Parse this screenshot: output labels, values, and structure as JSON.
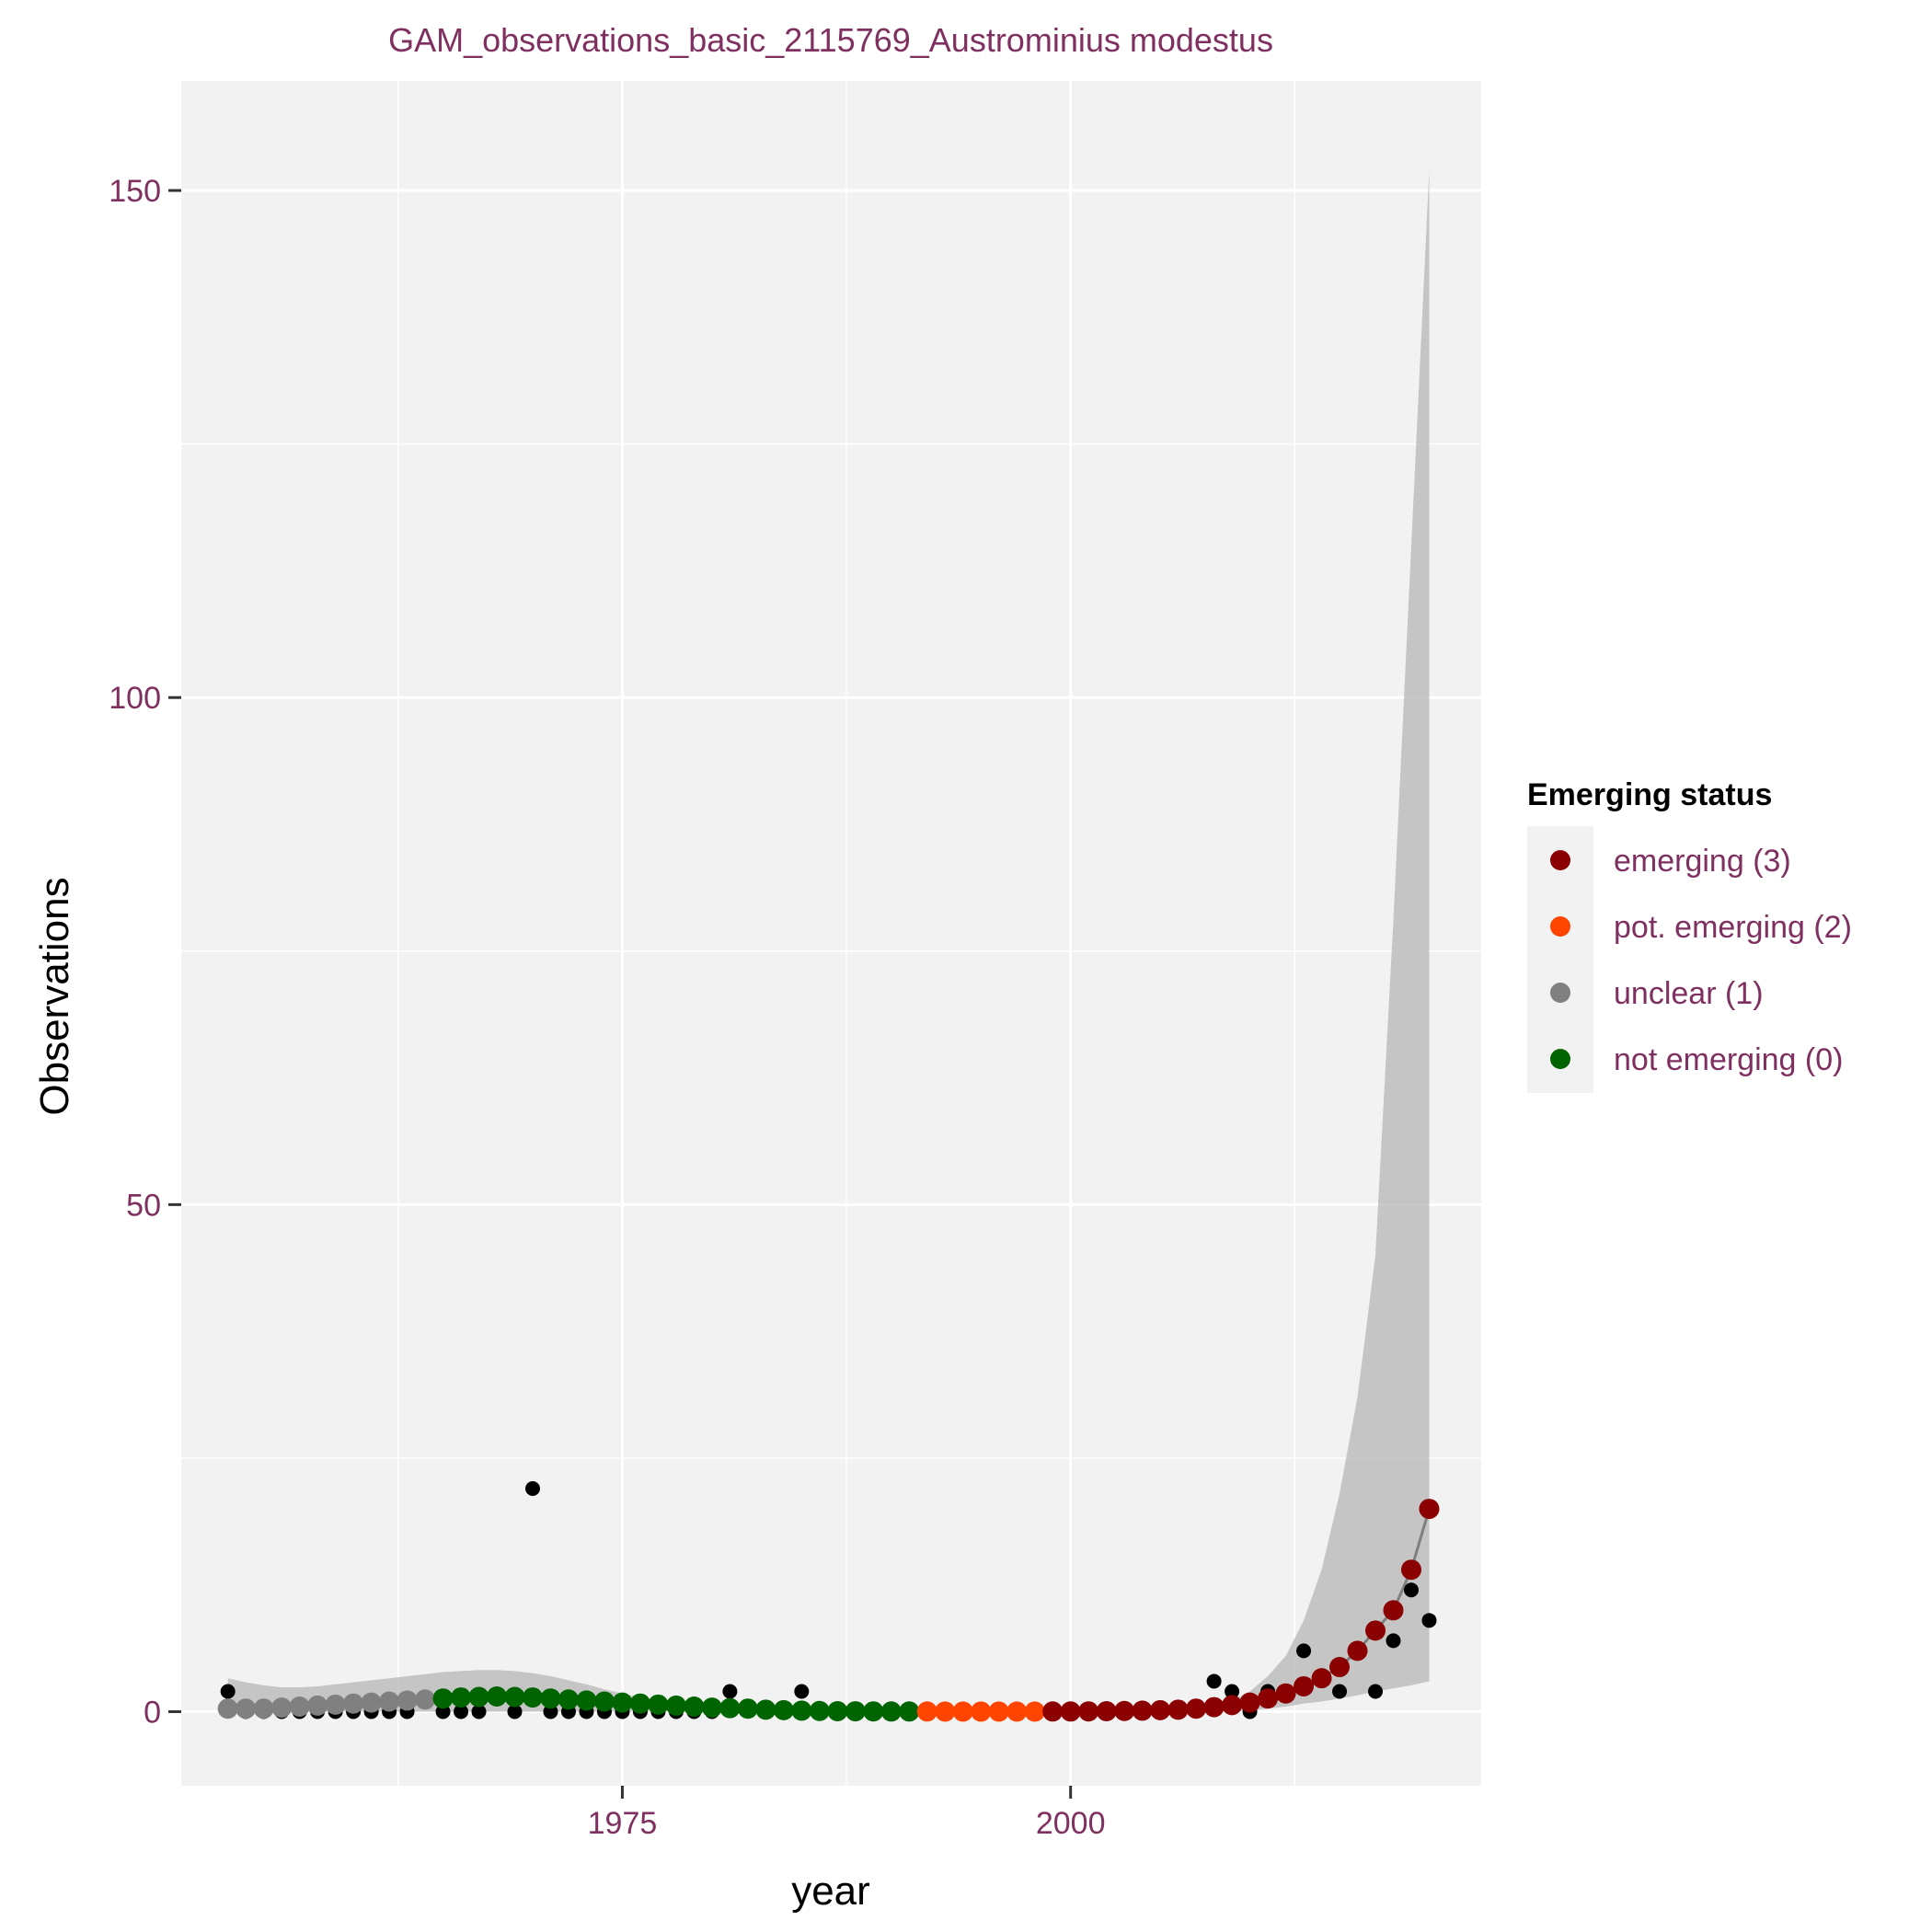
{
  "chart_data": {
    "type": "scatter",
    "title": "GAM_observations_basic_2115769_Austrominius modestus",
    "xlabel": "year",
    "ylabel": "Observations",
    "xlim": [
      1950.4,
      2022.9
    ],
    "ylim": [
      -7.3,
      160.8
    ],
    "x_ticks": [
      1975,
      2000
    ],
    "x_tick_labels": [
      "1975",
      "2000"
    ],
    "y_ticks": [
      0,
      50,
      100,
      150
    ],
    "y_tick_labels": [
      "0",
      "50",
      "100",
      "150"
    ],
    "grid": true,
    "legend": {
      "title": "Emerging status",
      "position": "right",
      "items": [
        {
          "label": "emerging (3)",
          "color": "#8b0000"
        },
        {
          "label": "pot. emerging (2)",
          "color": "#ff4500"
        },
        {
          "label": "unclear (1)",
          "color": "#808080"
        },
        {
          "label": "not emerging (0)",
          "color": "#006400"
        }
      ]
    },
    "observed": {
      "color": "#000000",
      "x": [
        1953,
        1954,
        1955,
        1956,
        1957,
        1958,
        1959,
        1960,
        1961,
        1962,
        1963,
        1965,
        1966,
        1967,
        1969,
        1970,
        1971,
        1972,
        1973,
        1974,
        1975,
        1976,
        1977,
        1978,
        1979,
        1980,
        1981,
        1985,
        2008,
        2009,
        2010,
        2011,
        2013,
        2015,
        2017,
        2018,
        2019,
        2020
      ],
      "y": [
        2,
        0,
        0,
        0,
        0,
        0,
        0,
        0,
        0,
        0,
        0,
        0,
        0,
        0,
        0,
        22,
        0,
        0,
        0,
        0,
        0,
        0,
        0,
        0,
        0,
        0,
        2,
        2,
        3,
        2,
        0,
        2,
        6,
        2,
        2,
        7,
        12,
        9
      ]
    },
    "fitted": {
      "status_colors": [
        "#808080",
        "#808080",
        "#808080",
        "#808080",
        "#808080",
        "#808080",
        "#808080",
        "#808080",
        "#808080",
        "#808080",
        "#808080",
        "#808080",
        "#006400",
        "#006400",
        "#006400",
        "#006400",
        "#006400",
        "#006400",
        "#006400",
        "#006400",
        "#006400",
        "#006400",
        "#006400",
        "#006400",
        "#006400",
        "#006400",
        "#006400",
        "#006400",
        "#006400",
        "#006400",
        "#006400",
        "#006400",
        "#006400",
        "#006400",
        "#006400",
        "#006400",
        "#006400",
        "#006400",
        "#006400",
        "#ff4500",
        "#ff4500",
        "#ff4500",
        "#ff4500",
        "#ff4500",
        "#ff4500",
        "#ff4500",
        "#8b0000",
        "#8b0000",
        "#8b0000",
        "#8b0000",
        "#8b0000",
        "#8b0000",
        "#8b0000",
        "#8b0000",
        "#8b0000",
        "#8b0000",
        "#8b0000",
        "#8b0000",
        "#8b0000",
        "#8b0000",
        "#8b0000",
        "#8b0000",
        "#8b0000",
        "#8b0000",
        "#8b0000",
        "#8b0000",
        "#8b0000",
        "#8b0000"
      ],
      "x": [
        1953,
        1954,
        1955,
        1956,
        1957,
        1958,
        1959,
        1960,
        1961,
        1962,
        1963,
        1964,
        1965,
        1966,
        1967,
        1968,
        1969,
        1970,
        1971,
        1972,
        1973,
        1974,
        1975,
        1976,
        1977,
        1978,
        1979,
        1980,
        1981,
        1982,
        1983,
        1984,
        1985,
        1986,
        1987,
        1988,
        1989,
        1990,
        1991,
        1992,
        1993,
        1994,
        1995,
        1996,
        1997,
        1998,
        1999,
        2000,
        2001,
        2002,
        2003,
        2004,
        2005,
        2006,
        2007,
        2008,
        2009,
        2010,
        2011,
        2012,
        2013,
        2014,
        2015,
        2016,
        2017,
        2018,
        2019,
        2020
      ],
      "y": [
        0.3,
        0.3,
        0.3,
        0.4,
        0.5,
        0.6,
        0.7,
        0.8,
        0.9,
        1.0,
        1.1,
        1.2,
        1.3,
        1.4,
        1.45,
        1.5,
        1.45,
        1.4,
        1.3,
        1.2,
        1.1,
        1.0,
        0.9,
        0.8,
        0.7,
        0.6,
        0.5,
        0.4,
        0.35,
        0.3,
        0.2,
        0.15,
        0.1,
        0.07,
        0.05,
        0.04,
        0.03,
        0.02,
        0.02,
        0.02,
        0.01,
        0.01,
        0.01,
        0.01,
        0.01,
        0.01,
        0.02,
        0.02,
        0.03,
        0.05,
        0.07,
        0.1,
        0.15,
        0.2,
        0.3,
        0.45,
        0.65,
        0.9,
        1.3,
        1.8,
        2.5,
        3.3,
        4.4,
        6.0,
        8.0,
        10.0,
        14.0,
        20.0
      ],
      "ci_lower": [
        0,
        0,
        0,
        0,
        0,
        0,
        0,
        0,
        0,
        0,
        0,
        0,
        0,
        0,
        0,
        0,
        0,
        0,
        0,
        0,
        0,
        0,
        0,
        0,
        0,
        0,
        0,
        0,
        0,
        0,
        0,
        0,
        0,
        0,
        0,
        0,
        0,
        0,
        0,
        0,
        0,
        0,
        0,
        0,
        0,
        0,
        0,
        0,
        0,
        0,
        0,
        0,
        0,
        0,
        0,
        0,
        0,
        0.1,
        0.3,
        0.5,
        0.8,
        1.0,
        1.3,
        1.6,
        2.0,
        2.3,
        2.6,
        3.0
      ],
      "ci_upper": [
        3.3,
        2.9,
        2.6,
        2.4,
        2.4,
        2.5,
        2.7,
        2.9,
        3.1,
        3.3,
        3.5,
        3.7,
        3.9,
        4.0,
        4.1,
        4.1,
        4.0,
        3.8,
        3.5,
        3.1,
        2.7,
        2.2,
        1.8,
        1.4,
        1.1,
        0.9,
        0.7,
        0.5,
        0.4,
        0.3,
        0.2,
        0.1,
        0.1,
        0.1,
        0.1,
        0.1,
        0.1,
        0.1,
        0.1,
        0.1,
        0.1,
        0.1,
        0.1,
        0.1,
        0.1,
        0.1,
        0.1,
        0.1,
        0.1,
        0.1,
        0.1,
        0.1,
        0.2,
        0.3,
        0.5,
        0.7,
        1.1,
        2.0,
        3.5,
        5.5,
        9.0,
        14.0,
        21.5,
        31.0,
        45.0,
        78.0,
        115.0,
        152.0
      ]
    },
    "colors": {
      "panel_bg": "#f2f2f2",
      "grid": "#ffffff",
      "text_accent": "#7f3060",
      "ribbon": "#b3b3b3",
      "fit_line": "#7f7f7f"
    }
  }
}
